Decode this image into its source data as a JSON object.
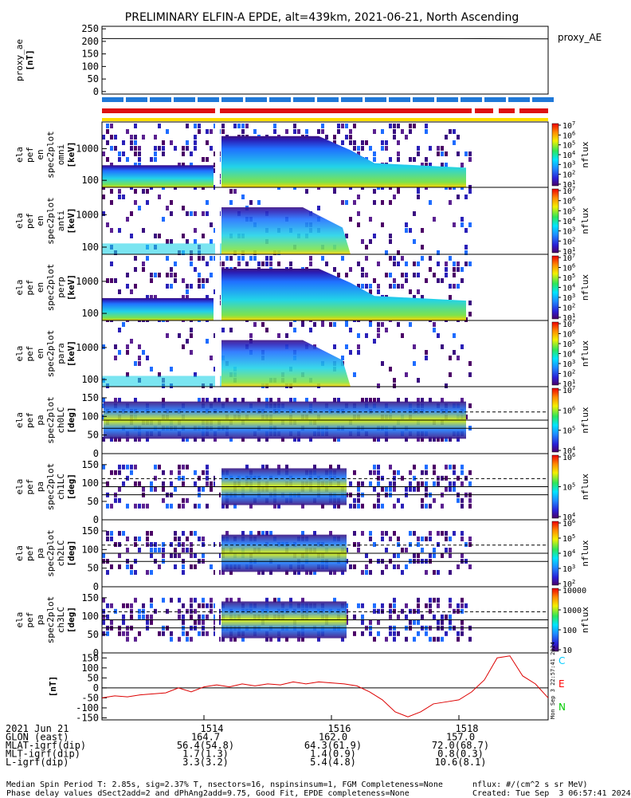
{
  "title": "PRELIMINARY ELFIN-A EPDE, alt=439km, 2021-06-21, North Ascending",
  "colors": {
    "science_bar_blue": "#1f78d8",
    "fgm_bar_red": "#dd1111",
    "yellow_bar": "#ffdd00",
    "trace_red": "#dd0000",
    "c_label": "#00ccff",
    "e_label": "#ff0000",
    "n_label": "#00cc00"
  },
  "chart_data": [
    {
      "type": "line",
      "panel": "proxy_ae",
      "ylabel": [
        "proxy_ae",
        "[nT]"
      ],
      "legend": "proxy_AE",
      "ylim": [
        -10,
        260
      ],
      "yticks": [
        0,
        50,
        100,
        150,
        200,
        250
      ],
      "x": [
        1512.4,
        1518.0,
        1519.4
      ],
      "y": [
        211,
        211,
        210
      ]
    },
    {
      "type": "heatmap",
      "panel": "ela_pef_en_spec2plot_omni",
      "ylabel": [
        "ela",
        "pef",
        "en",
        "spec2plot",
        "omni",
        "[keV]"
      ],
      "yscale": "log",
      "yticks": [
        100,
        1000
      ],
      "cbar_label": "nflux",
      "cbar_ticks": [
        "10^1",
        "10^2",
        "10^3",
        "10^4",
        "10^5",
        "10^6",
        "10^7"
      ]
    },
    {
      "type": "heatmap",
      "panel": "ela_pef_en_spec2plot_anti",
      "ylabel": [
        "ela",
        "pef",
        "en",
        "spec2plot",
        "anti",
        "[keV]"
      ],
      "yscale": "log",
      "yticks": [
        100,
        1000
      ],
      "cbar_label": "nflux",
      "cbar_ticks": [
        "10^1",
        "10^2",
        "10^3",
        "10^4",
        "10^5",
        "10^6",
        "10^7"
      ]
    },
    {
      "type": "heatmap",
      "panel": "ela_pef_en_spec2plot_perp",
      "ylabel": [
        "ela",
        "pef",
        "en",
        "spec2plot",
        "perp",
        "[keV]"
      ],
      "yscale": "log",
      "yticks": [
        100,
        1000
      ],
      "cbar_label": "nflux",
      "cbar_ticks": [
        "10^1",
        "10^2",
        "10^3",
        "10^4",
        "10^5",
        "10^6",
        "10^7"
      ]
    },
    {
      "type": "heatmap",
      "panel": "ela_pef_en_spec2plot_para",
      "ylabel": [
        "ela",
        "pef",
        "en",
        "spec2plot",
        "para",
        "[keV]"
      ],
      "yscale": "log",
      "yticks": [
        100,
        1000
      ],
      "cbar_label": "nflux",
      "cbar_ticks": [
        "10^1",
        "10^2",
        "10^3",
        "10^4",
        "10^5",
        "10^6",
        "10^7"
      ]
    },
    {
      "type": "heatmap",
      "panel": "ela_pef_pa_spec2plot_ch0LC",
      "ylabel": [
        "ela",
        "pef",
        "pa",
        "spec2plot",
        "ch0LC",
        "[deg]"
      ],
      "ylim": [
        0,
        180
      ],
      "yticks": [
        0,
        50,
        100,
        150
      ],
      "cbar_label": "nflux",
      "cbar_ticks": [
        "10^4",
        "10^5",
        "10^6",
        "10^7"
      ]
    },
    {
      "type": "heatmap",
      "panel": "ela_pef_pa_spec2plot_ch1LC",
      "ylabel": [
        "ela",
        "pef",
        "pa",
        "spec2plot",
        "ch1LC",
        "[deg]"
      ],
      "ylim": [
        0,
        180
      ],
      "yticks": [
        0,
        50,
        100,
        150
      ],
      "cbar_label": "nflux",
      "cbar_ticks": [
        "10^4",
        "10^5",
        "10^6"
      ]
    },
    {
      "type": "heatmap",
      "panel": "ela_pef_pa_spec2plot_ch2LC",
      "ylabel": [
        "ela",
        "pef",
        "pa",
        "spec2plot",
        "ch2LC",
        "[deg]"
      ],
      "ylim": [
        0,
        180
      ],
      "yticks": [
        0,
        50,
        100,
        150
      ],
      "cbar_label": "nflux",
      "cbar_ticks": [
        "10^2",
        "10^3",
        "10^4",
        "10^5",
        "10^6"
      ]
    },
    {
      "type": "heatmap",
      "panel": "ela_pef_pa_spec2plot_ch3LC",
      "ylabel": [
        "ela",
        "pef",
        "pa",
        "spec2plot",
        "ch3LC",
        "[deg]"
      ],
      "ylim": [
        0,
        180
      ],
      "yticks": [
        0,
        50,
        100,
        150
      ],
      "cbar_label": "nflux",
      "cbar_ticks": [
        "10",
        "100",
        "1000",
        "10000"
      ]
    },
    {
      "type": "line",
      "panel": "fgm_residual",
      "ylabel": [
        "[nT]"
      ],
      "ylim": [
        -160,
        175
      ],
      "yticks": [
        -150,
        -100,
        -50,
        0,
        50,
        100,
        150
      ],
      "legend_labels": [
        "C",
        "E",
        "N"
      ],
      "x": [
        1512.4,
        1512.6,
        1512.8,
        1513.0,
        1513.2,
        1513.4,
        1513.6,
        1513.8,
        1514.0,
        1514.2,
        1514.4,
        1514.6,
        1514.8,
        1515.0,
        1515.2,
        1515.4,
        1515.6,
        1515.8,
        1516.0,
        1516.2,
        1516.4,
        1516.6,
        1516.8,
        1517.0,
        1517.2,
        1517.4,
        1517.6,
        1517.8,
        1518.0,
        1518.2,
        1518.4,
        1518.6,
        1518.8,
        1519.0,
        1519.2,
        1519.4
      ],
      "y": [
        -50,
        -40,
        -45,
        -35,
        -30,
        -25,
        0,
        -20,
        5,
        15,
        5,
        20,
        10,
        20,
        15,
        30,
        20,
        30,
        25,
        20,
        10,
        -20,
        -60,
        -120,
        -145,
        -120,
        -80,
        -70,
        -60,
        -20,
        40,
        150,
        160,
        60,
        20,
        -50
      ]
    }
  ],
  "x_axis": {
    "ticks": [
      "1514",
      "1516",
      "1518"
    ],
    "rows": [
      {
        "label": "2021 Jun 21",
        "values": [
          "1514",
          "1516",
          "1518"
        ]
      },
      {
        "label": "GLON (east)",
        "values": [
          "164.7",
          "162.0",
          "157.0"
        ]
      },
      {
        "label": "MLAT-igrf(dip)",
        "values": [
          "56.4(54.8)",
          "64.3(61.9)",
          "72.0(68.7)"
        ]
      },
      {
        "label": "MLT-igrf(dip)",
        "values": [
          "1.7(1.3)",
          "1.4(0.9)",
          "0.8(0.3)"
        ]
      },
      {
        "label": "L-igrf(dip)",
        "values": [
          "3.3(3.2)",
          "5.4(4.8)",
          "10.6(8.1)"
        ]
      }
    ]
  },
  "side_stamp": "Mon Sep  3 22:57:41 2024",
  "footer": {
    "line1": "Median Spin Period T: 2.85s, sig=2.37% T, nsectors=16, nspinsinsum=1, FGM Completeness=None",
    "line2": "Phase delay values dSect2add=2 and dPhAng2add=9.75, Good Fit, EPDE completeness=None",
    "units": "nflux: #/(cm^2 s sr MeV)",
    "created": "Created: Tue Sep  3 06:57:41 2024"
  }
}
